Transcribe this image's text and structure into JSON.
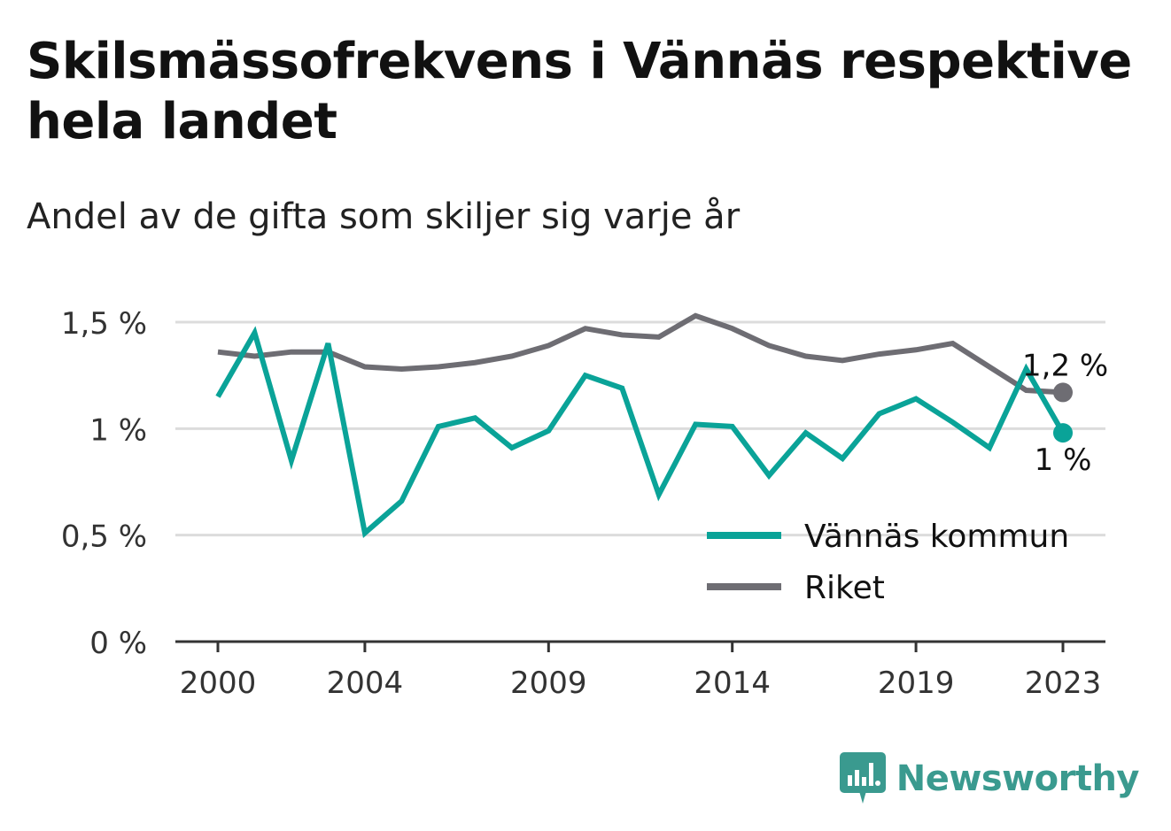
{
  "title": "Skilsmässofrekvens i Vännäs respektive hela landet",
  "subtitle": "Andel av de gifta som skiljer sig varje år",
  "brand": "Newsworthy",
  "colors": {
    "vannas": "#0aa398",
    "riket": "#6e6d73",
    "grid": "#dcdcdc",
    "axis": "#333333",
    "brand": "#3a9a8f"
  },
  "chart_data": {
    "type": "line",
    "x": [
      2000,
      2001,
      2002,
      2003,
      2004,
      2005,
      2006,
      2007,
      2008,
      2009,
      2010,
      2011,
      2012,
      2013,
      2014,
      2015,
      2016,
      2017,
      2018,
      2019,
      2020,
      2021,
      2022,
      2023
    ],
    "x_ticks": [
      2000,
      2004,
      2009,
      2014,
      2019,
      2023
    ],
    "x_tick_labels": [
      "2000",
      "2004",
      "2009",
      "2014",
      "2019",
      "2023"
    ],
    "ylim": [
      0,
      1.5
    ],
    "y_ticks": [
      0,
      0.5,
      1,
      1.5
    ],
    "y_tick_labels": [
      "0 %",
      "0,5 %",
      "1 %",
      "1,5 %"
    ],
    "grid": true,
    "legend_position": "bottom-right",
    "series": [
      {
        "name": "Vännäs kommun",
        "color": "#0aa398",
        "values": [
          1.15,
          1.45,
          0.85,
          1.4,
          0.51,
          0.66,
          1.01,
          1.05,
          0.91,
          0.99,
          1.25,
          1.19,
          0.69,
          1.02,
          1.01,
          0.78,
          0.98,
          0.86,
          1.07,
          1.14,
          1.03,
          0.91,
          1.28,
          0.98
        ],
        "end_label": "1 %"
      },
      {
        "name": "Riket",
        "color": "#6e6d73",
        "values": [
          1.36,
          1.34,
          1.36,
          1.36,
          1.29,
          1.28,
          1.29,
          1.31,
          1.34,
          1.39,
          1.47,
          1.44,
          1.43,
          1.53,
          1.47,
          1.39,
          1.34,
          1.32,
          1.35,
          1.37,
          1.4,
          1.29,
          1.18,
          1.17
        ],
        "end_label": "1,2 %"
      }
    ]
  }
}
